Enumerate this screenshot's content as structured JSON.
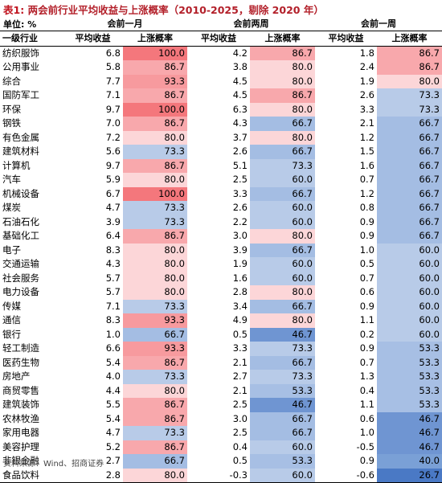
{
  "title_label": "表1:",
  "title_text": "两会前行业平均收益与上涨概率（2010-2025，剔除 2020 年）",
  "unit": "单位: %",
  "groups": [
    "会前一月",
    "会前两周",
    "会前一周"
  ],
  "columns": [
    "一级行业",
    "平均收益",
    "上涨概率",
    "平均收益",
    "上涨概率",
    "平均收益",
    "上涨概率"
  ],
  "rows": [
    {
      "name": "纺织服饰",
      "v": [
        "6.8",
        "100.0",
        "4.2",
        "86.7",
        "1.8",
        "86.7"
      ]
    },
    {
      "name": "公用事业",
      "v": [
        "5.8",
        "86.7",
        "3.8",
        "80.0",
        "2.4",
        "86.7"
      ]
    },
    {
      "name": "综合",
      "v": [
        "7.7",
        "93.3",
        "4.5",
        "80.0",
        "1.9",
        "80.0"
      ]
    },
    {
      "name": "国防军工",
      "v": [
        "7.1",
        "86.7",
        "4.5",
        "86.7",
        "2.6",
        "73.3"
      ]
    },
    {
      "name": "环保",
      "v": [
        "9.7",
        "100.0",
        "6.3",
        "80.0",
        "3.3",
        "73.3"
      ]
    },
    {
      "name": "钢铁",
      "v": [
        "7.0",
        "86.7",
        "4.3",
        "66.7",
        "2.1",
        "66.7"
      ]
    },
    {
      "name": "有色金属",
      "v": [
        "7.2",
        "80.0",
        "3.7",
        "80.0",
        "1.2",
        "66.7"
      ]
    },
    {
      "name": "建筑材料",
      "v": [
        "5.6",
        "73.3",
        "2.6",
        "66.7",
        "1.5",
        "66.7"
      ]
    },
    {
      "name": "计算机",
      "v": [
        "9.7",
        "86.7",
        "5.1",
        "73.3",
        "1.6",
        "66.7"
      ]
    },
    {
      "name": "汽车",
      "v": [
        "5.9",
        "80.0",
        "2.5",
        "60.0",
        "0.7",
        "66.7"
      ]
    },
    {
      "name": "机械设备",
      "v": [
        "6.7",
        "100.0",
        "3.3",
        "66.7",
        "1.2",
        "66.7"
      ]
    },
    {
      "name": "煤炭",
      "v": [
        "4.7",
        "73.3",
        "2.6",
        "60.0",
        "0.8",
        "66.7"
      ]
    },
    {
      "name": "石油石化",
      "v": [
        "3.9",
        "73.3",
        "2.2",
        "60.0",
        "0.9",
        "66.7"
      ]
    },
    {
      "name": "基础化工",
      "v": [
        "6.4",
        "86.7",
        "3.0",
        "80.0",
        "0.9",
        "66.7"
      ]
    },
    {
      "name": "电子",
      "v": [
        "8.3",
        "80.0",
        "3.9",
        "66.7",
        "1.0",
        "60.0"
      ]
    },
    {
      "name": "交通运输",
      "v": [
        "4.3",
        "80.0",
        "1.9",
        "60.0",
        "0.5",
        "60.0"
      ]
    },
    {
      "name": "社会服务",
      "v": [
        "5.7",
        "80.0",
        "1.6",
        "60.0",
        "0.7",
        "60.0"
      ]
    },
    {
      "name": "电力设备",
      "v": [
        "5.7",
        "80.0",
        "2.8",
        "80.0",
        "0.6",
        "60.0"
      ]
    },
    {
      "name": "传媒",
      "v": [
        "7.1",
        "73.3",
        "3.4",
        "66.7",
        "0.9",
        "60.0"
      ]
    },
    {
      "name": "通信",
      "v": [
        "8.3",
        "93.3",
        "4.9",
        "80.0",
        "1.1",
        "60.0"
      ]
    },
    {
      "name": "银行",
      "v": [
        "1.0",
        "66.7",
        "0.5",
        "46.7",
        "0.2",
        "60.0"
      ]
    },
    {
      "name": "轻工制造",
      "v": [
        "6.6",
        "93.3",
        "3.3",
        "73.3",
        "0.9",
        "53.3"
      ]
    },
    {
      "name": "医药生物",
      "v": [
        "5.4",
        "86.7",
        "2.1",
        "66.7",
        "0.7",
        "53.3"
      ]
    },
    {
      "name": "房地产",
      "v": [
        "4.0",
        "73.3",
        "2.7",
        "73.3",
        "1.3",
        "53.3"
      ]
    },
    {
      "name": "商贸零售",
      "v": [
        "4.4",
        "80.0",
        "2.1",
        "53.3",
        "0.4",
        "53.3"
      ]
    },
    {
      "name": "建筑装饰",
      "v": [
        "5.5",
        "86.7",
        "2.5",
        "46.7",
        "1.1",
        "53.3"
      ]
    },
    {
      "name": "农林牧渔",
      "v": [
        "5.4",
        "86.7",
        "3.0",
        "66.7",
        "0.6",
        "46.7"
      ]
    },
    {
      "name": "家用电器",
      "v": [
        "4.7",
        "73.3",
        "2.5",
        "66.7",
        "1.0",
        "46.7"
      ]
    },
    {
      "name": "美容护理",
      "v": [
        "5.2",
        "86.7",
        "0.4",
        "60.0",
        "-0.5",
        "46.7"
      ]
    },
    {
      "name": "非银金融",
      "v": [
        "2.7",
        "66.7",
        "0.5",
        "53.3",
        "0.9",
        "40.0"
      ]
    },
    {
      "name": "食品饮料",
      "v": [
        "2.8",
        "80.0",
        "-0.3",
        "60.0",
        "-0.6",
        "26.7"
      ]
    }
  ],
  "source": "资料来源：Wind、招商证券",
  "colors": {
    "r100": "#f4777c",
    "r93": "#f79a9e",
    "r87": "#f8a8ac",
    "r80": "#fcd6d8",
    "b73": "#b8cbe8",
    "b67": "#a4bde3",
    "b60": "#b8cbe8",
    "b53": "#a7bfe4",
    "b47": "#6f95d2",
    "b40": "#7aa0d6",
    "b27": "#4a79c5"
  }
}
